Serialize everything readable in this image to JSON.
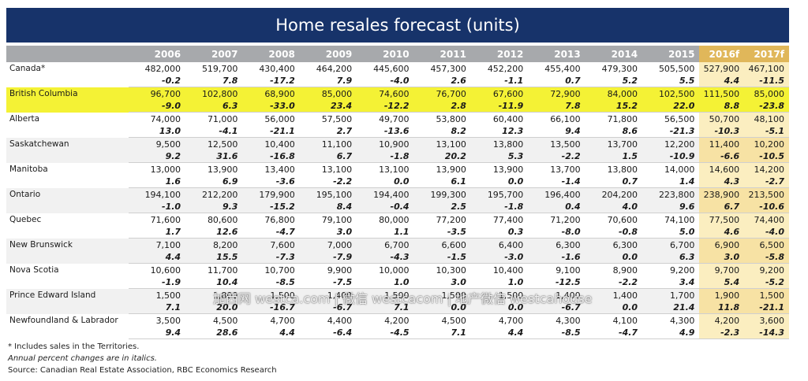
{
  "title": "Home resales forecast (units)",
  "colors": {
    "header_bg": "#17336a",
    "column_header_bg": "#a7a9ac",
    "forecast_header_bg": "#e0b75a",
    "forecast_cell_bg": "#fbeec0",
    "highlight": "#f4f235"
  },
  "chart_data": {
    "type": "table",
    "title": "Home resales forecast (units)",
    "columns": [
      "2006",
      "2007",
      "2008",
      "2009",
      "2010",
      "2011",
      "2012",
      "2013",
      "2014",
      "2015",
      "2016f",
      "2017f"
    ],
    "forecast_columns": [
      "2016f",
      "2017f"
    ],
    "highlighted_row": "British Columbia",
    "rows": [
      {
        "region": "Canada*",
        "units": [
          "482,000",
          "519,700",
          "430,400",
          "464,200",
          "445,600",
          "457,300",
          "452,200",
          "455,400",
          "479,300",
          "505,500",
          "527,900",
          "467,100"
        ],
        "pct": [
          "-0.2",
          "7.8",
          "-17.2",
          "7.9",
          "-4.0",
          "2.6",
          "-1.1",
          "0.7",
          "5.2",
          "5.5",
          "4.4",
          "-11.5"
        ]
      },
      {
        "region": "British Columbia",
        "units": [
          "96,700",
          "102,800",
          "68,900",
          "85,000",
          "74,600",
          "76,700",
          "67,600",
          "72,900",
          "84,000",
          "102,500",
          "111,500",
          "85,000"
        ],
        "pct": [
          "-9.0",
          "6.3",
          "-33.0",
          "23.4",
          "-12.2",
          "2.8",
          "-11.9",
          "7.8",
          "15.2",
          "22.0",
          "8.8",
          "-23.8"
        ]
      },
      {
        "region": "Alberta",
        "units": [
          "74,000",
          "71,000",
          "56,000",
          "57,500",
          "49,700",
          "53,800",
          "60,400",
          "66,100",
          "71,800",
          "56,500",
          "50,700",
          "48,100"
        ],
        "pct": [
          "13.0",
          "-4.1",
          "-21.1",
          "2.7",
          "-13.6",
          "8.2",
          "12.3",
          "9.4",
          "8.6",
          "-21.3",
          "-10.3",
          "-5.1"
        ]
      },
      {
        "region": "Saskatchewan",
        "units": [
          "9,500",
          "12,500",
          "10,400",
          "11,100",
          "10,900",
          "13,100",
          "13,800",
          "13,500",
          "13,700",
          "12,200",
          "11,400",
          "10,200"
        ],
        "pct": [
          "9.2",
          "31.6",
          "-16.8",
          "6.7",
          "-1.8",
          "20.2",
          "5.3",
          "-2.2",
          "1.5",
          "-10.9",
          "-6.6",
          "-10.5"
        ]
      },
      {
        "region": "Manitoba",
        "units": [
          "13,000",
          "13,900",
          "13,400",
          "13,100",
          "13,100",
          "13,900",
          "13,900",
          "13,700",
          "13,800",
          "14,000",
          "14,600",
          "14,200"
        ],
        "pct": [
          "1.6",
          "6.9",
          "-3.6",
          "-2.2",
          "0.0",
          "6.1",
          "0.0",
          "-1.4",
          "0.7",
          "1.4",
          "4.3",
          "-2.7"
        ]
      },
      {
        "region": "Ontario",
        "units": [
          "194,100",
          "212,200",
          "179,900",
          "195,100",
          "194,400",
          "199,300",
          "195,700",
          "196,400",
          "204,200",
          "223,800",
          "238,900",
          "213,500"
        ],
        "pct": [
          "-1.0",
          "9.3",
          "-15.2",
          "8.4",
          "-0.4",
          "2.5",
          "-1.8",
          "0.4",
          "4.0",
          "9.6",
          "6.7",
          "-10.6"
        ]
      },
      {
        "region": "Quebec",
        "units": [
          "71,600",
          "80,600",
          "76,800",
          "79,100",
          "80,000",
          "77,200",
          "77,400",
          "71,200",
          "70,600",
          "74,100",
          "77,500",
          "74,400"
        ],
        "pct": [
          "1.7",
          "12.6",
          "-4.7",
          "3.0",
          "1.1",
          "-3.5",
          "0.3",
          "-8.0",
          "-0.8",
          "5.0",
          "4.6",
          "-4.0"
        ]
      },
      {
        "region": "New Brunswick",
        "units": [
          "7,100",
          "8,200",
          "7,600",
          "7,000",
          "6,700",
          "6,600",
          "6,400",
          "6,300",
          "6,300",
          "6,700",
          "6,900",
          "6,500"
        ],
        "pct": [
          "4.4",
          "15.5",
          "-7.3",
          "-7.9",
          "-4.3",
          "-1.5",
          "-3.0",
          "-1.6",
          "0.0",
          "6.3",
          "3.0",
          "-5.8"
        ]
      },
      {
        "region": "Nova Scotia",
        "units": [
          "10,600",
          "11,700",
          "10,700",
          "9,900",
          "10,000",
          "10,300",
          "10,400",
          "9,100",
          "8,900",
          "9,200",
          "9,700",
          "9,200"
        ],
        "pct": [
          "-1.9",
          "10.4",
          "-8.5",
          "-7.5",
          "1.0",
          "3.0",
          "1.0",
          "-12.5",
          "-2.2",
          "3.4",
          "5.4",
          "-5.2"
        ]
      },
      {
        "region": "Prince Edward Island",
        "units": [
          "1,500",
          "1,800",
          "1,500",
          "1,400",
          "1,500",
          "1,500",
          "1,500",
          "1,400",
          "1,400",
          "1,700",
          "1,900",
          "1,500"
        ],
        "pct": [
          "7.1",
          "20.0",
          "-16.7",
          "-6.7",
          "7.1",
          "0.0",
          "0.0",
          "-6.7",
          "0.0",
          "21.4",
          "11.8",
          "-21.1"
        ]
      },
      {
        "region": "Newfoundland & Labrador",
        "units": [
          "3,500",
          "4,500",
          "4,700",
          "4,400",
          "4,200",
          "4,500",
          "4,700",
          "4,300",
          "4,100",
          "4,300",
          "4,200",
          "3,600"
        ],
        "pct": [
          "9.4",
          "28.6",
          "4.4",
          "-6.4",
          "-4.5",
          "7.1",
          "4.4",
          "-8.5",
          "-4.7",
          "4.9",
          "-2.3",
          "-14.3"
        ]
      }
    ]
  },
  "footnotes": {
    "territories": "* Includes sales in the Territories.",
    "italics": "Annual percent changes are in italics.",
    "source": "Source: Canadian Real Estate Association, RBC Economics Research"
  },
  "watermark": "加西网 westca.com | 微信 westcacom | 地产微信 westcahouse"
}
